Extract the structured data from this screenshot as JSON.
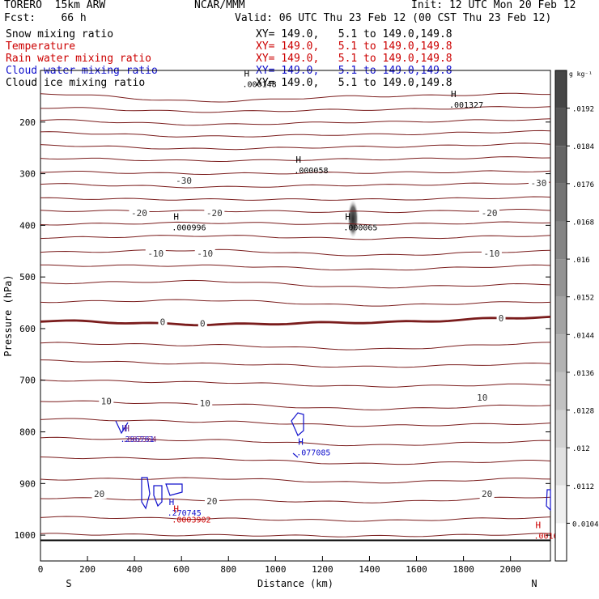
{
  "header": {
    "model": "TORERO  15km ARW",
    "center": "NCAR/MMM",
    "init": "Init: 12 UTC Mon 20 Feb 12",
    "fcst": "Fcst:    66 h",
    "valid": "Valid: 06 UTC Thu 23 Feb 12 (00 CST Thu 23 Feb 12)"
  },
  "fields": [
    {
      "name": "Snow mixing ratio",
      "xy": "XY= 149.0,   5.1 to 149.0,149.8",
      "color": "#000000",
      "xycolor": "#000000"
    },
    {
      "name": "Temperature",
      "xy": "XY= 149.0,   5.1 to 149.0,149.8",
      "color": "#cc0000",
      "xycolor": "#cc0000"
    },
    {
      "name": "Rain water mixing ratio",
      "xy": "XY= 149.0,   5.1 to 149.0,149.8",
      "color": "#cc0000",
      "xycolor": "#cc0000"
    },
    {
      "name": "Cloud water mixing ratio",
      "xy": "XY= 149.0,   5.1 to 149.0,149.8",
      "color": "#1010cc",
      "xycolor": "#1010cc"
    },
    {
      "name": "Cloud ice mixing ratio",
      "xy": "XY= 149.0,   5.1 to 149.0,149.8",
      "color": "#000000",
      "xycolor": "#000000"
    }
  ],
  "colors": {
    "isotherm": "#7a1c1c",
    "cloud_water": "#1010cc",
    "rain": "#cc0000",
    "axis": "#000000"
  },
  "chart_data": {
    "type": "cross-section",
    "xlabel": "Distance (km)",
    "ylabel": "Pressure (hPa)",
    "xlim": [
      0,
      2170
    ],
    "ylim": [
      1050,
      100
    ],
    "x_ticks": [
      0,
      200,
      400,
      600,
      800,
      1000,
      1200,
      1400,
      1600,
      1800,
      2000
    ],
    "y_ticks": [
      200,
      300,
      400,
      500,
      600,
      700,
      800,
      900,
      1000
    ],
    "x_end_labels": {
      "left": "S",
      "right": "N"
    },
    "ground_pressure": 1010,
    "colorbar": {
      "unit": "g kg⁻¹",
      "levels": [
        "0.0104",
        ".0112",
        ".012",
        ".0128",
        ".0136",
        ".0144",
        ".0152",
        ".016",
        ".0168",
        ".0176",
        ".0184",
        ".0192"
      ]
    },
    "isotherm_levels": [
      [
        145,
        160,
        150,
        145
      ],
      [
        172,
        180,
        176,
        170
      ],
      [
        196,
        205,
        200,
        195
      ],
      [
        220,
        228,
        224,
        218
      ],
      [
        245,
        252,
        248,
        242
      ],
      [
        270,
        275,
        272,
        268
      ],
      [
        296,
        300,
        298,
        295
      ],
      [
        320,
        326,
        322,
        318
      ],
      [
        348,
        350,
        350,
        346
      ],
      [
        372,
        372,
        374,
        370
      ],
      [
        398,
        395,
        398,
        394
      ],
      [
        424,
        420,
        426,
        420
      ],
      [
        452,
        448,
        458,
        450
      ],
      [
        478,
        478,
        486,
        478
      ],
      [
        512,
        508,
        520,
        514
      ],
      [
        548,
        545,
        555,
        548
      ],
      [
        585,
        592,
        588,
        578
      ],
      [
        628,
        632,
        640,
        628
      ],
      [
        662,
        668,
        674,
        668
      ],
      [
        700,
        704,
        712,
        708
      ],
      [
        740,
        746,
        756,
        748
      ],
      [
        775,
        780,
        788,
        784
      ],
      [
        812,
        816,
        826,
        818
      ],
      [
        850,
        852,
        862,
        856
      ],
      [
        892,
        890,
        898,
        890
      ],
      [
        928,
        932,
        936,
        926
      ],
      [
        965,
        968,
        972,
        966
      ],
      [
        998,
        1000,
        1002,
        998
      ]
    ],
    "isotherm_labels": [
      {
        "text": "-30",
        "x": 610,
        "p": 313
      },
      {
        "text": "-30",
        "x": 2120,
        "p": 318
      },
      {
        "text": "-20",
        "x": 420,
        "p": 376
      },
      {
        "text": "-20",
        "x": 740,
        "p": 376
      },
      {
        "text": "-20",
        "x": 1910,
        "p": 376
      },
      {
        "text": "-10",
        "x": 490,
        "p": 454
      },
      {
        "text": "-10",
        "x": 700,
        "p": 454
      },
      {
        "text": "-10",
        "x": 1920,
        "p": 454
      },
      {
        "text": "0",
        "x": 520,
        "p": 587
      },
      {
        "text": "0",
        "x": 690,
        "p": 590
      },
      {
        "text": "0",
        "x": 1960,
        "p": 580
      },
      {
        "text": "10",
        "x": 280,
        "p": 740
      },
      {
        "text": "10",
        "x": 700,
        "p": 744
      },
      {
        "text": "10",
        "x": 1880,
        "p": 733
      },
      {
        "text": "20",
        "x": 250,
        "p": 920
      },
      {
        "text": "20",
        "x": 730,
        "p": 934
      },
      {
        "text": "20",
        "x": 1900,
        "p": 920
      }
    ],
    "freezing_level_index": 16,
    "max_labels": [
      {
        "mark": "H",
        "value": ".000148",
        "x": 880,
        "p": 115,
        "color": "#000000"
      },
      {
        "mark": "H",
        "value": ".001327",
        "x": 1760,
        "p": 155,
        "color": "#000000"
      },
      {
        "mark": "H",
        "value": ".000058",
        "x": 1100,
        "p": 282,
        "color": "#000000"
      },
      {
        "mark": "H",
        "value": ".000996",
        "x": 580,
        "p": 392,
        "color": "#000000"
      },
      {
        "mark": "H",
        "value": ".000065",
        "x": 1310,
        "p": 392,
        "color": "#000000"
      },
      {
        "mark": "H",
        "value": ".077085",
        "x": 1110,
        "p": 828,
        "color": "#1010cc"
      },
      {
        "mark": "H",
        "value": ".270745",
        "x": 560,
        "p": 945,
        "color": "#1010cc"
      },
      {
        "mark": "H",
        "value": ".0003902",
        "x": 580,
        "p": 958,
        "color": "#cc0000"
      },
      {
        "mark": "H",
        "value": ".0016",
        "x": 2120,
        "p": 990,
        "color": "#cc0000"
      },
      {
        "mark": "H",
        "value": ".296761",
        "x": 360,
        "p": 802,
        "color": "#1010cc"
      },
      {
        "mark": "H",
        "value": ".082564",
        "x": 370,
        "p": 802,
        "color": "#7a2a7a"
      }
    ],
    "shading": {
      "x": 1330,
      "p_top": 355,
      "p_bottom": 420
    }
  }
}
